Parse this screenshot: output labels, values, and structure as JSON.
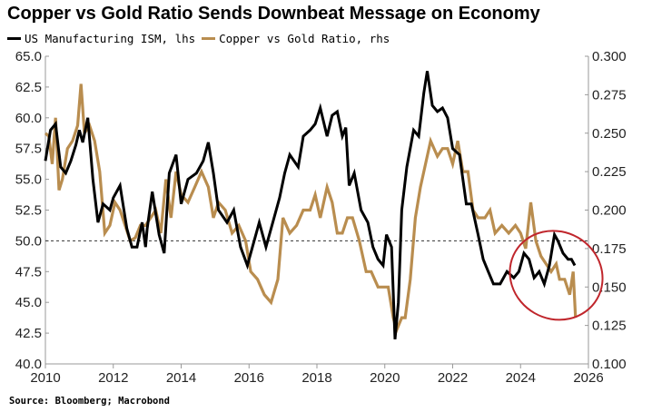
{
  "title": "Copper vs Gold Ratio Sends Downbeat Message on Economy",
  "source": "Source: Bloomberg; Macrobond",
  "colors": {
    "ism": "#000000",
    "ratio": "#b98d4f",
    "ellipse": "#c0262c"
  },
  "chart_data": {
    "type": "line",
    "title": "Copper vs Gold Ratio Sends Downbeat Message on Economy",
    "xlim": [
      2010,
      2026
    ],
    "x_ticks": [
      "2010",
      "2012",
      "2014",
      "2016",
      "2018",
      "2020",
      "2022",
      "2024",
      "2026"
    ],
    "y_left": {
      "label": "lhs",
      "lim": [
        40,
        65
      ],
      "ticks": [
        "40.0",
        "42.5",
        "45.0",
        "47.5",
        "50.0",
        "52.5",
        "55.0",
        "57.5",
        "60.0",
        "62.5",
        "65.0"
      ]
    },
    "y_right": {
      "label": "rhs",
      "lim": [
        0.1,
        0.3
      ],
      "ticks": [
        "0.100",
        "0.125",
        "0.150",
        "0.175",
        "0.200",
        "0.225",
        "0.250",
        "0.275",
        "0.300"
      ]
    },
    "reference_line": {
      "axis": "left",
      "value": 50,
      "style": "dashed"
    },
    "annotation": "red ellipse around 2024-2025 data",
    "grid": false,
    "legend_position": "top-left",
    "series": [
      {
        "name": "US Manufacturing ISM, lhs",
        "axis": "left",
        "points": [
          [
            2010.0,
            56.5
          ],
          [
            2010.15,
            59.0
          ],
          [
            2010.3,
            59.5
          ],
          [
            2010.45,
            56.0
          ],
          [
            2010.6,
            55.5
          ],
          [
            2010.75,
            56.5
          ],
          [
            2010.9,
            57.8
          ],
          [
            2011.0,
            59.0
          ],
          [
            2011.1,
            58.0
          ],
          [
            2011.25,
            60.0
          ],
          [
            2011.4,
            55.0
          ],
          [
            2011.55,
            51.5
          ],
          [
            2011.7,
            53.0
          ],
          [
            2011.9,
            52.5
          ],
          [
            2012.0,
            53.5
          ],
          [
            2012.2,
            54.5
          ],
          [
            2012.4,
            51.0
          ],
          [
            2012.55,
            49.5
          ],
          [
            2012.7,
            49.5
          ],
          [
            2012.85,
            51.5
          ],
          [
            2012.95,
            49.5
          ],
          [
            2013.0,
            51.0
          ],
          [
            2013.15,
            54.0
          ],
          [
            2013.35,
            50.5
          ],
          [
            2013.5,
            49.0
          ],
          [
            2013.65,
            55.5
          ],
          [
            2013.85,
            57.0
          ],
          [
            2014.0,
            53.0
          ],
          [
            2014.2,
            55.0
          ],
          [
            2014.45,
            55.5
          ],
          [
            2014.65,
            56.5
          ],
          [
            2014.8,
            58.0
          ],
          [
            2014.95,
            55.5
          ],
          [
            2015.1,
            52.5
          ],
          [
            2015.35,
            51.5
          ],
          [
            2015.55,
            52.5
          ],
          [
            2015.75,
            49.5
          ],
          [
            2015.95,
            48.0
          ],
          [
            2016.1,
            49.5
          ],
          [
            2016.3,
            51.5
          ],
          [
            2016.5,
            49.5
          ],
          [
            2016.7,
            51.5
          ],
          [
            2016.9,
            53.5
          ],
          [
            2017.05,
            55.5
          ],
          [
            2017.2,
            57.0
          ],
          [
            2017.45,
            56.0
          ],
          [
            2017.6,
            58.5
          ],
          [
            2017.8,
            59.0
          ],
          [
            2017.95,
            59.5
          ],
          [
            2018.1,
            60.8
          ],
          [
            2018.3,
            58.5
          ],
          [
            2018.45,
            60.2
          ],
          [
            2018.6,
            60.5
          ],
          [
            2018.75,
            58.5
          ],
          [
            2018.85,
            59.2
          ],
          [
            2018.95,
            54.5
          ],
          [
            2019.1,
            55.5
          ],
          [
            2019.3,
            52.5
          ],
          [
            2019.5,
            51.5
          ],
          [
            2019.65,
            49.5
          ],
          [
            2019.8,
            48.5
          ],
          [
            2019.95,
            48.0
          ],
          [
            2020.05,
            50.5
          ],
          [
            2020.2,
            49.5
          ],
          [
            2020.3,
            42.0
          ],
          [
            2020.4,
            45.0
          ],
          [
            2020.5,
            52.5
          ],
          [
            2020.65,
            56.0
          ],
          [
            2020.85,
            59.0
          ],
          [
            2021.0,
            58.5
          ],
          [
            2021.15,
            62.0
          ],
          [
            2021.25,
            63.8
          ],
          [
            2021.4,
            61.0
          ],
          [
            2021.55,
            60.5
          ],
          [
            2021.7,
            60.8
          ],
          [
            2021.85,
            60.0
          ],
          [
            2022.0,
            57.5
          ],
          [
            2022.2,
            57.0
          ],
          [
            2022.4,
            53.0
          ],
          [
            2022.55,
            53.0
          ],
          [
            2022.75,
            50.5
          ],
          [
            2022.9,
            48.5
          ],
          [
            2023.05,
            47.5
          ],
          [
            2023.2,
            46.5
          ],
          [
            2023.4,
            46.5
          ],
          [
            2023.6,
            47.5
          ],
          [
            2023.8,
            47.0
          ],
          [
            2023.95,
            47.5
          ],
          [
            2024.1,
            49.0
          ],
          [
            2024.25,
            48.5
          ],
          [
            2024.4,
            47.0
          ],
          [
            2024.55,
            47.5
          ],
          [
            2024.7,
            46.5
          ],
          [
            2024.85,
            48.0
          ],
          [
            2025.0,
            50.5
          ],
          [
            2025.1,
            50.0
          ],
          [
            2025.25,
            49.0
          ],
          [
            2025.4,
            48.5
          ],
          [
            2025.5,
            48.5
          ],
          [
            2025.6,
            48.0
          ]
        ]
      },
      {
        "name": "Copper vs Gold Ratio, rhs",
        "axis": "right",
        "points": [
          [
            2010.0,
            0.25
          ],
          [
            2010.1,
            0.248
          ],
          [
            2010.2,
            0.23
          ],
          [
            2010.3,
            0.26
          ],
          [
            2010.4,
            0.213
          ],
          [
            2010.5,
            0.22
          ],
          [
            2010.65,
            0.24
          ],
          [
            2010.8,
            0.245
          ],
          [
            2010.95,
            0.255
          ],
          [
            2011.05,
            0.282
          ],
          [
            2011.15,
            0.25
          ],
          [
            2011.3,
            0.255
          ],
          [
            2011.45,
            0.245
          ],
          [
            2011.6,
            0.225
          ],
          [
            2011.75,
            0.185
          ],
          [
            2011.9,
            0.19
          ],
          [
            2012.05,
            0.205
          ],
          [
            2012.2,
            0.2
          ],
          [
            2012.35,
            0.19
          ],
          [
            2012.5,
            0.18
          ],
          [
            2012.65,
            0.182
          ],
          [
            2012.8,
            0.19
          ],
          [
            2012.95,
            0.19
          ],
          [
            2013.1,
            0.195
          ],
          [
            2013.25,
            0.2
          ],
          [
            2013.4,
            0.185
          ],
          [
            2013.55,
            0.22
          ],
          [
            2013.7,
            0.195
          ],
          [
            2013.85,
            0.225
          ],
          [
            2014.0,
            0.21
          ],
          [
            2014.2,
            0.205
          ],
          [
            2014.4,
            0.215
          ],
          [
            2014.6,
            0.225
          ],
          [
            2014.8,
            0.215
          ],
          [
            2014.95,
            0.195
          ],
          [
            2015.1,
            0.205
          ],
          [
            2015.3,
            0.2
          ],
          [
            2015.5,
            0.185
          ],
          [
            2015.7,
            0.19
          ],
          [
            2015.9,
            0.18
          ],
          [
            2016.05,
            0.16
          ],
          [
            2016.25,
            0.155
          ],
          [
            2016.45,
            0.145
          ],
          [
            2016.65,
            0.14
          ],
          [
            2016.85,
            0.155
          ],
          [
            2017.0,
            0.195
          ],
          [
            2017.2,
            0.185
          ],
          [
            2017.4,
            0.19
          ],
          [
            2017.6,
            0.2
          ],
          [
            2017.8,
            0.2
          ],
          [
            2017.95,
            0.21
          ],
          [
            2018.1,
            0.195
          ],
          [
            2018.3,
            0.215
          ],
          [
            2018.45,
            0.205
          ],
          [
            2018.6,
            0.185
          ],
          [
            2018.75,
            0.185
          ],
          [
            2018.9,
            0.195
          ],
          [
            2019.05,
            0.195
          ],
          [
            2019.25,
            0.18
          ],
          [
            2019.45,
            0.16
          ],
          [
            2019.6,
            0.16
          ],
          [
            2019.8,
            0.15
          ],
          [
            2019.95,
            0.15
          ],
          [
            2020.1,
            0.15
          ],
          [
            2020.25,
            0.13
          ],
          [
            2020.35,
            0.122
          ],
          [
            2020.5,
            0.13
          ],
          [
            2020.6,
            0.13
          ],
          [
            2020.75,
            0.155
          ],
          [
            2020.9,
            0.195
          ],
          [
            2021.05,
            0.215
          ],
          [
            2021.2,
            0.23
          ],
          [
            2021.35,
            0.245
          ],
          [
            2021.55,
            0.235
          ],
          [
            2021.7,
            0.24
          ],
          [
            2021.85,
            0.24
          ],
          [
            2022.0,
            0.23
          ],
          [
            2022.15,
            0.245
          ],
          [
            2022.3,
            0.225
          ],
          [
            2022.45,
            0.225
          ],
          [
            2022.6,
            0.2
          ],
          [
            2022.75,
            0.195
          ],
          [
            2022.95,
            0.195
          ],
          [
            2023.1,
            0.2
          ],
          [
            2023.25,
            0.185
          ],
          [
            2023.45,
            0.19
          ],
          [
            2023.65,
            0.185
          ],
          [
            2023.85,
            0.19
          ],
          [
            2024.0,
            0.185
          ],
          [
            2024.15,
            0.175
          ],
          [
            2024.3,
            0.205
          ],
          [
            2024.45,
            0.18
          ],
          [
            2024.6,
            0.17
          ],
          [
            2024.75,
            0.165
          ],
          [
            2024.9,
            0.16
          ],
          [
            2025.05,
            0.165
          ],
          [
            2025.15,
            0.155
          ],
          [
            2025.3,
            0.155
          ],
          [
            2025.45,
            0.145
          ],
          [
            2025.55,
            0.16
          ],
          [
            2025.62,
            0.13
          ]
        ]
      }
    ]
  }
}
